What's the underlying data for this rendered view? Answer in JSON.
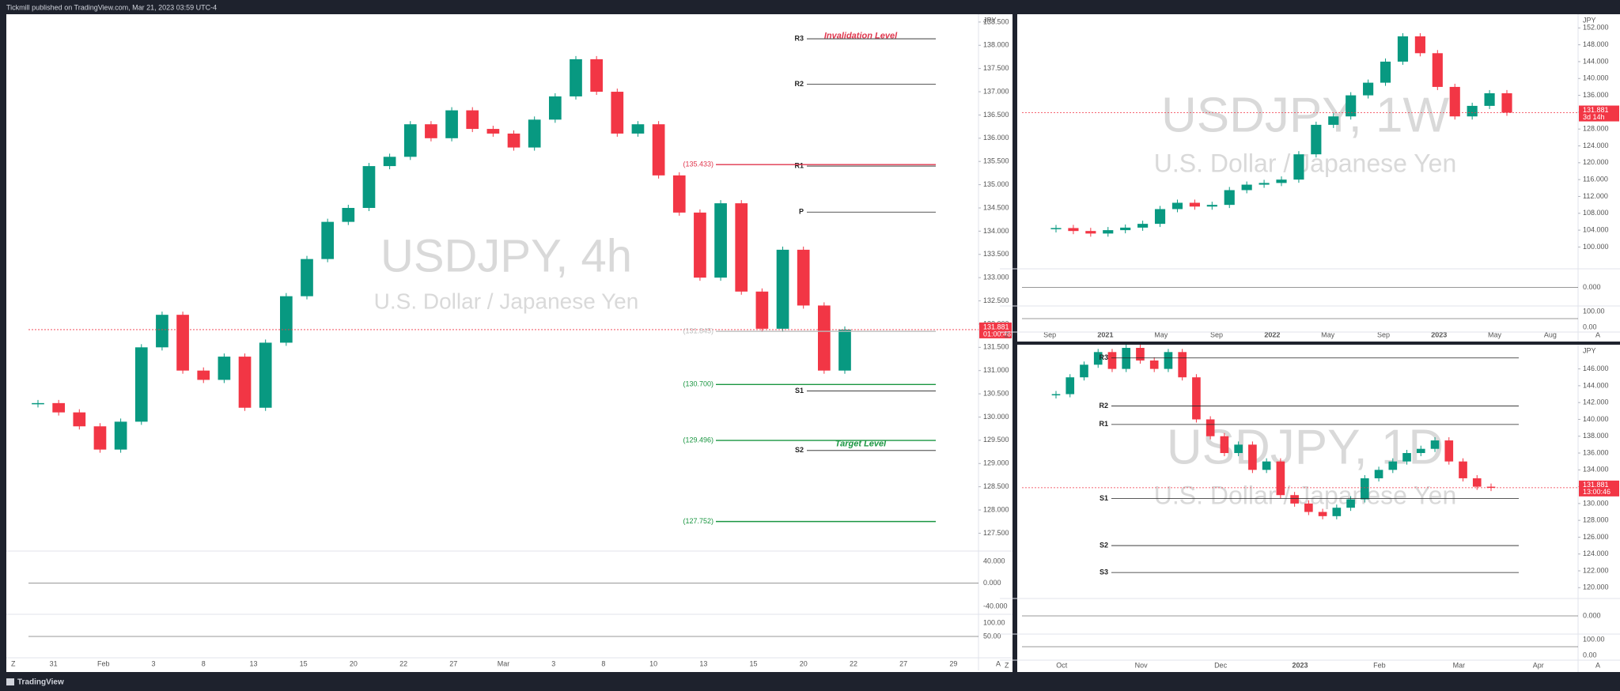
{
  "header": {
    "text": "Tickmill published on TradingView.com, Mar 21, 2023 03:59 UTC-4"
  },
  "footer": {
    "brand": "TradingView"
  },
  "axis_buttons": [
    "Z",
    "A"
  ],
  "panels": [
    {
      "symbol": "USDJPY, 4h",
      "description": "U.S. Dollar / Japanese Yen",
      "currency": "JPY",
      "ylim": [
        127.15,
        138.6
      ],
      "yticks": [
        {
          "value": 127.5,
          "label": "127.500"
        },
        {
          "value": 128,
          "label": "128.000"
        },
        {
          "value": 128.5,
          "label": "128.500"
        },
        {
          "value": 129,
          "label": "129.000"
        },
        {
          "value": 129.5,
          "label": "129.500"
        },
        {
          "value": 130,
          "label": "130.000"
        },
        {
          "value": 130.5,
          "label": "130.500"
        },
        {
          "value": 131,
          "label": "131.000"
        },
        {
          "value": 131.5,
          "label": "131.500"
        },
        {
          "value": 132,
          "label": "132.000"
        },
        {
          "value": 132.5,
          "label": "132.500"
        },
        {
          "value": 133,
          "label": "133.000"
        },
        {
          "value": 133.5,
          "label": "133.500"
        },
        {
          "value": 134,
          "label": "134.000"
        },
        {
          "value": 134.5,
          "label": "134.500"
        },
        {
          "value": 135,
          "label": "135.000"
        },
        {
          "value": 135.5,
          "label": "135.500"
        },
        {
          "value": 136,
          "label": "136.000"
        },
        {
          "value": 136.5,
          "label": "136.500"
        },
        {
          "value": 137,
          "label": "137.000"
        },
        {
          "value": 137.5,
          "label": "137.500"
        },
        {
          "value": 138,
          "label": "138.000"
        },
        {
          "value": 138.5,
          "label": "138.500"
        }
      ],
      "xlabels": [
        "31",
        "Feb",
        "3",
        "8",
        "13",
        "15",
        "20",
        "22",
        "27",
        "Mar",
        "3",
        "8",
        "10",
        "13",
        "15",
        "20",
        "22",
        "27",
        "29"
      ],
      "price": {
        "values": [
          130.3,
          130.1,
          129.8,
          129.3,
          129.9,
          131.5,
          132.2,
          131.0,
          130.8,
          131.3,
          130.2,
          131.6,
          132.6,
          133.4,
          134.2,
          134.5,
          135.4,
          135.6,
          136.3,
          136.0,
          136.6,
          136.2,
          136.1,
          135.8,
          136.4,
          136.9,
          137.7,
          137.0,
          136.1,
          136.3,
          135.2,
          134.4,
          133.0,
          134.6,
          132.7,
          131.9,
          133.6,
          132.4,
          131.0,
          131.881
        ]
      },
      "last_price": {
        "value": 131.881,
        "label": "131.881"
      },
      "countdown": "01:00:46",
      "pivots": [
        {
          "label": "R3",
          "value": 138.14
        },
        {
          "label": "R2",
          "value": 137.16
        },
        {
          "label": "R1",
          "value": 135.4
        },
        {
          "label": "P",
          "value": 134.41
        },
        {
          "label": "S1",
          "value": 130.56
        },
        {
          "label": "S2",
          "value": 129.28
        }
      ],
      "levels": [
        {
          "value": 135.433,
          "label": "(135.433)"
        },
        {
          "value": 131.845,
          "label": "(131.845)"
        },
        {
          "value": 130.7,
          "label": "(130.700)"
        },
        {
          "value": 129.496,
          "label": "(129.496)"
        },
        {
          "value": 127.752,
          "label": "(127.752)"
        }
      ],
      "annotations": [
        {
          "text": "Invalidation Level",
          "value": 138.2
        },
        {
          "text": "Target Level",
          "value": 129.42
        }
      ],
      "indicator_labels": [
        "40.000",
        "0.000",
        "-40.000",
        "100.00",
        "50.00"
      ]
    },
    {
      "symbol": "USDJPY, 1W",
      "description": "U.S. Dollar / Japanese Yen",
      "currency": "JPY",
      "ylim": [
        95.2,
        154.5
      ],
      "yticks": [
        {
          "value": 100,
          "label": "100.000"
        },
        {
          "value": 104,
          "label": "104.000"
        },
        {
          "value": 108,
          "label": "108.000"
        },
        {
          "value": 112,
          "label": "112.000"
        },
        {
          "value": 116,
          "label": "116.000"
        },
        {
          "value": 120,
          "label": "120.000"
        },
        {
          "value": 124,
          "label": "124.000"
        },
        {
          "value": 128,
          "label": "128.000"
        },
        {
          "value": 132,
          "label": "132.000"
        },
        {
          "value": 136,
          "label": "136.000"
        },
        {
          "value": 140,
          "label": "140.000"
        },
        {
          "value": 144,
          "label": "144.000"
        },
        {
          "value": 148,
          "label": "148.000"
        },
        {
          "value": 152,
          "label": "152.000"
        }
      ],
      "xlabels": [
        "Sep",
        "2021",
        "May",
        "Sep",
        "2022",
        "May",
        "Sep",
        "2023",
        "May",
        "Aug"
      ],
      "price": {
        "values": [
          104.5,
          103.8,
          103.2,
          104.0,
          104.6,
          105.5,
          109.0,
          110.5,
          109.6,
          110.0,
          113.5,
          114.8,
          115.2,
          116.0,
          122.0,
          129.0,
          131.0,
          136.0,
          139.0,
          144.0,
          150.0,
          146.0,
          138.0,
          131.0,
          133.5,
          136.5,
          131.881
        ]
      },
      "last_price": {
        "value": 131.881,
        "label": "131.881"
      },
      "countdown": "3d 14h",
      "pivots": [],
      "levels": [],
      "annotations": [],
      "indicator_labels": [
        "0.000",
        "100.00",
        "0.00"
      ]
    },
    {
      "symbol": "USDJPY, 1D",
      "description": "U.S. Dollar / Japanese Yen",
      "currency": "JPY",
      "ylim": [
        118.9,
        148.5
      ],
      "yticks": [
        {
          "value": 120,
          "label": "120.000"
        },
        {
          "value": 122,
          "label": "122.000"
        },
        {
          "value": 124,
          "label": "124.000"
        },
        {
          "value": 126,
          "label": "126.000"
        },
        {
          "value": 128,
          "label": "128.000"
        },
        {
          "value": 130,
          "label": "130.000"
        },
        {
          "value": 132,
          "label": "132.000"
        },
        {
          "value": 134,
          "label": "134.000"
        },
        {
          "value": 136,
          "label": "136.000"
        },
        {
          "value": 138,
          "label": "138.000"
        },
        {
          "value": 140,
          "label": "140.000"
        },
        {
          "value": 142,
          "label": "142.000"
        },
        {
          "value": 144,
          "label": "144.000"
        },
        {
          "value": 146,
          "label": "146.000"
        }
      ],
      "xlabels": [
        "Oct",
        "Nov",
        "Dec",
        "2023",
        "Feb",
        "Mar",
        "Apr"
      ],
      "price": {
        "values": [
          143,
          145,
          146.5,
          148,
          146,
          148.5,
          147,
          146,
          148,
          145,
          140,
          138,
          136,
          137,
          134,
          135,
          131,
          130,
          129,
          128.5,
          129.5,
          130.5,
          133,
          134,
          135,
          136,
          136.5,
          137.5,
          135,
          133,
          132,
          131.881
        ]
      },
      "last_price": {
        "value": 131.881,
        "label": "131.881"
      },
      "countdown": "13:00:46",
      "pivots": [
        {
          "label": "R3",
          "value": 147.3
        },
        {
          "label": "R2",
          "value": 141.6
        },
        {
          "label": "R1",
          "value": 139.4
        },
        {
          "label": "S1",
          "value": 130.6
        },
        {
          "label": "S2",
          "value": 125.0
        },
        {
          "label": "S3",
          "value": 121.8
        }
      ],
      "levels": [],
      "annotations": [],
      "indicator_labels": [
        "0.000",
        "100.00",
        "0.00"
      ]
    }
  ]
}
